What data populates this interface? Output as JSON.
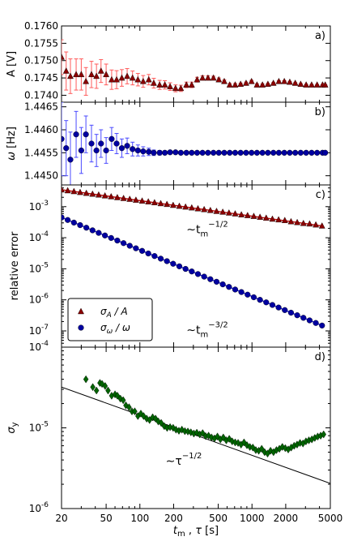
{
  "chart_data": [
    {
      "panel": "a)",
      "type": "scatter",
      "ylabel": "A [V]",
      "xscale": "log",
      "yscale": "linear",
      "xlim": [
        20,
        5000
      ],
      "ylim": [
        0.1738,
        0.176
      ],
      "yticks": [
        "0.1740",
        "0.1745",
        "0.1750",
        "0.1755",
        "0.1760"
      ],
      "ytick_values": [
        0.174,
        0.1745,
        0.175,
        0.1755,
        0.176
      ],
      "grid": false,
      "marker": "triangle",
      "marker_color": "#8b0000",
      "error_color": "#ff5a5a",
      "series": [
        {
          "x": [
            20,
            22,
            24,
            27,
            30,
            33,
            37,
            41,
            45,
            50,
            56,
            62,
            69,
            77,
            86,
            96,
            107,
            120,
            133,
            150,
            167,
            186,
            208,
            232,
            260,
            290,
            324,
            362,
            405,
            453,
            506,
            566,
            633,
            708,
            792,
            886,
            991,
            1108,
            1240,
            1387,
            1552,
            1736,
            1943,
            2173,
            2432,
            2720,
            3043,
            3405,
            3810,
            4262,
            4500
          ],
          "y": [
            0.1751,
            0.1747,
            0.17455,
            0.1746,
            0.1746,
            0.1744,
            0.1746,
            0.17455,
            0.1747,
            0.1746,
            0.17445,
            0.17445,
            0.1745,
            0.17455,
            0.1745,
            0.17445,
            0.1744,
            0.17445,
            0.17435,
            0.1743,
            0.1743,
            0.17425,
            0.1742,
            0.1742,
            0.1743,
            0.1743,
            0.17445,
            0.1745,
            0.1745,
            0.1745,
            0.17445,
            0.1744,
            0.1743,
            0.1743,
            0.17432,
            0.17435,
            0.1744,
            0.1743,
            0.1743,
            0.17432,
            0.17435,
            0.1744,
            0.1744,
            0.17438,
            0.17435,
            0.17432,
            0.1743,
            0.1743,
            0.1743,
            0.1743,
            0.1743
          ],
          "err": [
            0.0005,
            0.00055,
            0.0005,
            0.00045,
            0.00045,
            0.0004,
            0.00038,
            0.00035,
            0.00033,
            0.0003,
            0.00028,
            0.00026,
            0.00024,
            0.00022,
            0.0002,
            0.00018,
            0.00017,
            0.00015,
            0.00014,
            0.00013,
            0.00012,
            0.00011,
            0.0001,
            9e-05,
            8e-05,
            8e-05,
            7e-05,
            6e-05,
            6e-05,
            5e-05,
            5e-05,
            4e-05,
            4e-05,
            4e-05,
            3e-05,
            3e-05,
            3e-05,
            3e-05,
            3e-05,
            2e-05,
            2e-05,
            2e-05,
            2e-05,
            2e-05,
            2e-05,
            2e-05,
            1e-05,
            1e-05,
            1e-05,
            1e-05,
            1e-05
          ]
        }
      ]
    },
    {
      "panel": "b)",
      "type": "scatter",
      "ylabel": "ω [Hz]",
      "xscale": "log",
      "yscale": "linear",
      "xlim": [
        20,
        5000
      ],
      "ylim": [
        1.4448,
        1.4466
      ],
      "yticks": [
        "1.4450",
        "1.4455",
        "1.4460",
        "1.4465"
      ],
      "ytick_values": [
        1.445,
        1.4455,
        1.446,
        1.4465
      ],
      "grid": false,
      "marker": "circle",
      "marker_color": "#0000a0",
      "error_color": "#4a4aff",
      "series": [
        {
          "x": [
            20,
            22,
            24,
            27,
            30,
            33,
            37,
            41,
            45,
            50,
            56,
            62,
            69,
            77,
            86,
            96,
            107,
            120,
            133,
            150,
            167,
            186,
            208,
            232,
            260,
            290,
            324,
            362,
            405,
            453,
            506,
            566,
            633,
            708,
            792,
            886,
            991,
            1108,
            1240,
            1387,
            1552,
            1736,
            1943,
            2173,
            2432,
            2720,
            3043,
            3405,
            3810,
            4262,
            4500
          ],
          "y": [
            1.4458,
            1.4456,
            1.44535,
            1.4459,
            1.44555,
            1.4459,
            1.4457,
            1.44555,
            1.4457,
            1.44555,
            1.4458,
            1.4457,
            1.4456,
            1.44565,
            1.44558,
            1.44555,
            1.44553,
            1.44552,
            1.4455,
            1.4455,
            1.4455,
            1.44551,
            1.44551,
            1.4455,
            1.4455,
            1.4455,
            1.4455,
            1.4455,
            1.4455,
            1.4455,
            1.4455,
            1.4455,
            1.4455,
            1.4455,
            1.4455,
            1.4455,
            1.4455,
            1.4455,
            1.4455,
            1.4455,
            1.4455,
            1.4455,
            1.4455,
            1.4455,
            1.4455,
            1.4455,
            1.4455,
            1.4455,
            1.4455,
            1.4455,
            1.4455
          ],
          "err": [
            0.0008,
            0.0006,
            0.0006,
            0.0005,
            0.0005,
            0.0004,
            0.0004,
            0.00035,
            0.0003,
            0.00028,
            0.00025,
            0.00022,
            0.0002,
            0.00017,
            0.00015,
            0.00012,
            0.0001,
            8e-05,
            6e-05,
            5e-05,
            4e-05,
            3e-05,
            3e-05,
            2e-05,
            2e-05,
            2e-05,
            1e-05,
            1e-05,
            1e-05,
            1e-05,
            1e-05,
            1e-05,
            1e-05,
            1e-05,
            1e-05,
            1e-05,
            1e-05,
            1e-05,
            1e-05,
            1e-05,
            1e-05,
            1e-05,
            1e-05,
            1e-05,
            1e-05,
            1e-05,
            1e-05,
            1e-05,
            1e-05,
            1e-05,
            1e-05
          ]
        }
      ]
    },
    {
      "panel": "c)",
      "type": "scatter",
      "ylabel": "relative error",
      "xscale": "log",
      "yscale": "log",
      "xlim": [
        20,
        5000
      ],
      "ylim": [
        3e-08,
        0.005
      ],
      "yticks": [
        "10",
        "10",
        "10",
        "10",
        "10"
      ],
      "ytick_exponents": [
        "-7",
        "-6",
        "-5",
        "-4",
        "-3"
      ],
      "ytick_values": [
        1e-07,
        1e-06,
        1e-05,
        0.0001,
        0.001
      ],
      "grid": false,
      "legend_position": "lower-left",
      "series": [
        {
          "name": "σA / A",
          "marker": "triangle",
          "marker_color": "#8b0000",
          "fit_line_color": "#c00000",
          "x": [
            20,
            22.7,
            25.8,
            29.3,
            33.3,
            37.8,
            42.9,
            48.8,
            55.4,
            62.9,
            71.5,
            81.2,
            92.2,
            104.7,
            118.9,
            135.1,
            153.5,
            174.3,
            198,
            224.9,
            255.5,
            290.2,
            329.6,
            374.4,
            425.3,
            483.1,
            548.8,
            623.4,
            708.1,
            804.3,
            913.6,
            1037.8,
            1178.9,
            1339.1,
            1521.1,
            1727.8,
            1962.6,
            2229.4,
            2532.4,
            2876.6,
            3267.6,
            3711.7,
            4216.2
          ],
          "y": [
            0.0035,
            0.00328,
            0.00308,
            0.00289,
            0.00271,
            0.00254,
            0.00239,
            0.00224,
            0.0021,
            0.00197,
            0.00185,
            0.00174,
            0.00163,
            0.00153,
            0.00144,
            0.00135,
            0.00126,
            0.00119,
            0.00111,
            0.00104,
            0.00098,
            0.00092,
            0.00086,
            0.00081,
            0.00076,
            0.00071,
            0.00067,
            0.00063,
            0.00059,
            0.00055,
            0.00052,
            0.00049,
            0.00046,
            0.00043,
            0.0004,
            0.00038,
            0.00036,
            0.00033,
            0.00031,
            0.00029,
            0.00028,
            0.00026,
            0.00024
          ]
        },
        {
          "name": "σω / ω",
          "marker": "circle",
          "marker_color": "#0000a0",
          "fit_line_color": "#1a1aff",
          "x": [
            20,
            22.7,
            25.8,
            29.3,
            33.3,
            37.8,
            42.9,
            48.8,
            55.4,
            62.9,
            71.5,
            81.2,
            92.2,
            104.7,
            118.9,
            135.1,
            153.5,
            174.3,
            198,
            224.9,
            255.5,
            290.2,
            329.6,
            374.4,
            425.3,
            483.1,
            548.8,
            623.4,
            708.1,
            804.3,
            913.6,
            1037.8,
            1178.9,
            1339.1,
            1521.1,
            1727.8,
            1962.6,
            2229.4,
            2532.4,
            2876.6,
            3267.6,
            3711.7,
            4216.2
          ],
          "y": [
            0.00045,
            0.000372,
            0.000307,
            0.000254,
            0.00021,
            0.000173,
            0.000143,
            0.000118,
            9.8e-05,
            8.1e-05,
            6.7e-05,
            5.5e-05,
            4.56e-05,
            3.77e-05,
            3.11e-05,
            2.57e-05,
            2.12e-05,
            1.76e-05,
            1.45e-05,
            1.2e-05,
            9.9e-06,
            8.2e-06,
            6.77e-06,
            5.59e-06,
            4.62e-06,
            3.82e-06,
            3.15e-06,
            2.61e-06,
            2.15e-06,
            1.78e-06,
            1.47e-06,
            1.21e-06,
            1e-06,
            8.3e-07,
            6.85e-07,
            5.66e-07,
            4.68e-07,
            3.86e-07,
            3.19e-07,
            2.64e-07,
            2.18e-07,
            1.8e-07,
            1.49e-07
          ]
        }
      ],
      "annotations": [
        {
          "base": "∼t",
          "sub": "m",
          "sup": "−1/2",
          "x": 260,
          "y": 0.00014
        },
        {
          "base": "∼t",
          "sub": "m",
          "sup": "−3/2",
          "x": 260,
          "y": 8e-08
        }
      ]
    },
    {
      "panel": "d)",
      "type": "scatter",
      "ylabel": "σy",
      "xlabel": "tm , τ [s]",
      "xscale": "log",
      "yscale": "log",
      "xlim": [
        20,
        5000
      ],
      "ylim": [
        1e-06,
        0.0001
      ],
      "xticks": [
        "20",
        "50",
        "100",
        "200",
        "500",
        "1000",
        "2000",
        "5000"
      ],
      "xtick_values": [
        20,
        50,
        100,
        200,
        500,
        1000,
        2000,
        5000
      ],
      "yticks": [
        "10",
        "10",
        "10"
      ],
      "ytick_exponents": [
        "-6",
        "-5",
        "-4"
      ],
      "ytick_values": [
        1e-06,
        1e-05,
        0.0001
      ],
      "grid": false,
      "marker": "diamond",
      "marker_color": "#006400",
      "series": [
        {
          "x": [
            33,
            38,
            41,
            44,
            46,
            49,
            52,
            56,
            60,
            63,
            67,
            71,
            75,
            80,
            85,
            90,
            96,
            102,
            108,
            115,
            122,
            130,
            138,
            146,
            155,
            165,
            175,
            186,
            198,
            210,
            223,
            237,
            252,
            268,
            285,
            303,
            322,
            342,
            363,
            386,
            410,
            436,
            463,
            492,
            523,
            555,
            590,
            627,
            666,
            708,
            752,
            799,
            849,
            902,
            958,
            1018,
            1082,
            1149,
            1221,
            1297,
            1378,
            1464,
            1556,
            1653,
            1756,
            1866,
            1982,
            2106,
            2238,
            2378,
            2526,
            2684,
            2851,
            3030,
            3219,
            3420,
            3633,
            3860,
            4101,
            4357
          ],
          "y": [
            4e-05,
            3.2e-05,
            2.9e-05,
            3.6e-05,
            3.5e-05,
            3.3e-05,
            2.9e-05,
            2.5e-05,
            2.6e-05,
            2.5e-05,
            2.3e-05,
            2.2e-05,
            1.9e-05,
            1.8e-05,
            1.6e-05,
            1.6e-05,
            1.4e-05,
            1.5e-05,
            1.4e-05,
            1.3e-05,
            1.25e-05,
            1.35e-05,
            1.3e-05,
            1.2e-05,
            1.15e-05,
            1.05e-05,
            1e-05,
            1.02e-05,
            1e-05,
            9.5e-06,
            9.2e-06,
            9.5e-06,
            9.1e-06,
            9e-06,
            8.8e-06,
            8.5e-06,
            8.7e-06,
            8.3e-06,
            8.6e-06,
            7.9e-06,
            8e-06,
            7.6e-06,
            7.4e-06,
            7.8e-06,
            7.2e-06,
            7.6e-06,
            7e-06,
            7.3e-06,
            6.8e-06,
            6.6e-06,
            6.5e-06,
            6.2e-06,
            6.6e-06,
            6.1e-06,
            5.8e-06,
            5.7e-06,
            5.3e-06,
            5.2e-06,
            5.5e-06,
            5e-06,
            4.8e-06,
            5.2e-06,
            5e-06,
            5.3e-06,
            5.5e-06,
            5.8e-06,
            5.6e-06,
            5.4e-06,
            5.7e-06,
            6e-06,
            6.2e-06,
            6.5e-06,
            6.4e-06,
            6.8e-06,
            7e-06,
            7.2e-06,
            7.5e-06,
            7.8e-06,
            8e-06,
            8.3e-06
          ]
        }
      ],
      "fit_line": {
        "x": [
          20,
          5000
        ],
        "y": [
          3.2e-05,
          2.05e-06
        ]
      },
      "annotations": [
        {
          "base": "∼τ",
          "sup": "−1/2",
          "x": 170,
          "y": 3.5e-06
        }
      ]
    }
  ]
}
